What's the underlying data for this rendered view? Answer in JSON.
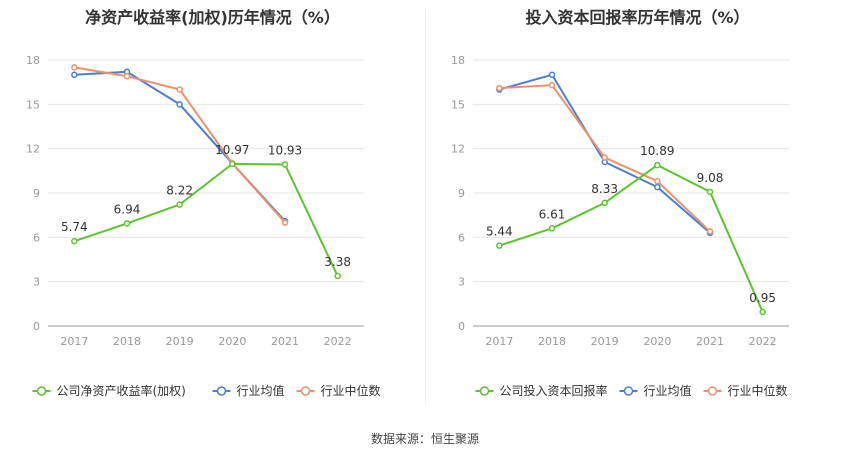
{
  "footer": {
    "source": "数据来源：恒生聚源"
  },
  "chart_data": [
    {
      "type": "line",
      "title": "净资产收益率(加权)历年情况（%）",
      "categories": [
        "2017",
        "2018",
        "2019",
        "2020",
        "2021",
        "2022"
      ],
      "ylim": [
        0,
        18
      ],
      "yticks": [
        0,
        3,
        6,
        9,
        12,
        15,
        18
      ],
      "grid": true,
      "legend_position": "bottom",
      "series": [
        {
          "name": "公司净资产收益率(加权)",
          "color": "#5cc42e",
          "labeled": true,
          "values": [
            5.74,
            6.94,
            8.22,
            10.97,
            10.93,
            3.38
          ],
          "labels": [
            "5.74",
            "6.94",
            "8.22",
            "10.97",
            "10.93",
            "3.38"
          ]
        },
        {
          "name": "行业均值",
          "color": "#4a7fd6",
          "labeled": false,
          "values": [
            17.0,
            17.2,
            15.0,
            11.0,
            7.1,
            null
          ]
        },
        {
          "name": "行业中位数",
          "color": "#f0906a",
          "labeled": false,
          "values": [
            17.5,
            16.9,
            16.0,
            11.0,
            7.0,
            null
          ]
        }
      ]
    },
    {
      "type": "line",
      "title": "投入资本回报率历年情况（%）",
      "categories": [
        "2017",
        "2018",
        "2019",
        "2020",
        "2021",
        "2022"
      ],
      "ylim": [
        0,
        18
      ],
      "yticks": [
        0,
        3,
        6,
        9,
        12,
        15,
        18
      ],
      "grid": true,
      "legend_position": "bottom",
      "series": [
        {
          "name": "公司投入资本回报率",
          "color": "#5cc42e",
          "labeled": true,
          "values": [
            5.44,
            6.61,
            8.33,
            10.89,
            9.08,
            0.95
          ],
          "labels": [
            "5.44",
            "6.61",
            "8.33",
            "10.89",
            "9.08",
            "0.95"
          ]
        },
        {
          "name": "行业均值",
          "color": "#4a7fd6",
          "labeled": false,
          "values": [
            16.0,
            17.0,
            11.1,
            9.4,
            6.3,
            null
          ]
        },
        {
          "name": "行业中位数",
          "color": "#f0906a",
          "labeled": false,
          "values": [
            16.1,
            16.3,
            11.4,
            9.8,
            6.4,
            null
          ]
        }
      ]
    }
  ]
}
